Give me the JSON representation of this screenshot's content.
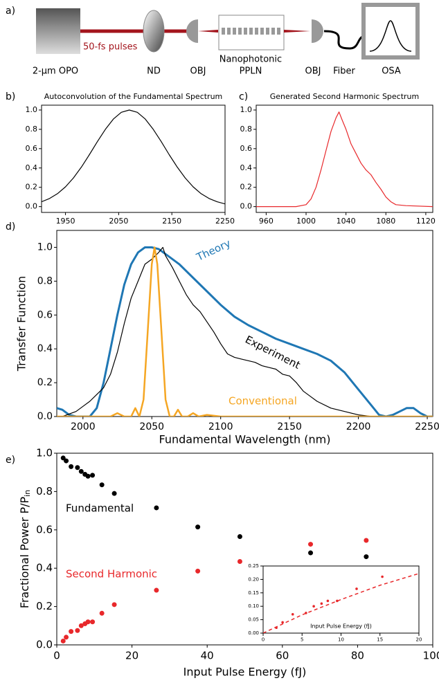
{
  "schematic": {
    "label": "a)",
    "source": "2-µm OPO",
    "pulses": "50-fs pulses",
    "attenuator": "ND",
    "objective_in": "OBJ",
    "chip": [
      "Nanophotonic",
      "PPLN"
    ],
    "objective_out": "OBJ",
    "fiber": "Fiber",
    "analyzer": "OSA"
  },
  "chart_data": [
    {
      "type": "line",
      "label": "b)",
      "title": "Autoconvolution of the Fundamental Spectrum",
      "xlim": [
        1905,
        2250
      ],
      "ylim": [
        -0.06,
        1.05
      ],
      "xticks": [
        1950,
        2050,
        2150,
        2250
      ],
      "yticks": [
        {
          "value": 0,
          "label": "0.0"
        },
        0.2,
        0.4,
        0.6,
        0.8,
        {
          "value": 1,
          "label": "1.0"
        }
      ],
      "series": [
        {
          "color": "#000000",
          "x": [
            1905,
            1920,
            1935,
            1950,
            1965,
            1980,
            1995,
            2010,
            2025,
            2040,
            2055,
            2070,
            2085,
            2100,
            2115,
            2130,
            2145,
            2160,
            2175,
            2190,
            2205,
            2220,
            2235,
            2250
          ],
          "values": [
            0.05,
            0.084,
            0.134,
            0.205,
            0.297,
            0.41,
            0.538,
            0.673,
            0.8,
            0.906,
            0.976,
            1.0,
            0.976,
            0.906,
            0.8,
            0.673,
            0.538,
            0.41,
            0.297,
            0.205,
            0.134,
            0.084,
            0.05,
            0.028
          ]
        }
      ]
    },
    {
      "type": "line",
      "label": "c)",
      "title": "Generated Second Harmonic Spectrum",
      "xlim": [
        950,
        1127
      ],
      "ylim": [
        -0.06,
        1.05
      ],
      "xticks": [
        960,
        1000,
        1040,
        1080,
        1120
      ],
      "yticks": [
        {
          "value": 0,
          "label": "0.0"
        },
        0.2,
        0.4,
        0.6,
        0.8,
        {
          "value": 1,
          "label": "1.0"
        }
      ],
      "series": [
        {
          "color": "#e8282b",
          "x": [
            950,
            990,
            1000,
            1005,
            1010,
            1015,
            1020,
            1025,
            1030,
            1033,
            1036,
            1040,
            1045,
            1050,
            1055,
            1060,
            1065,
            1070,
            1075,
            1080,
            1085,
            1090,
            1100,
            1127
          ],
          "values": [
            0,
            0,
            0.02,
            0.08,
            0.2,
            0.38,
            0.58,
            0.78,
            0.92,
            0.98,
            0.9,
            0.8,
            0.65,
            0.55,
            0.45,
            0.38,
            0.33,
            0.25,
            0.18,
            0.1,
            0.05,
            0.02,
            0.01,
            0
          ]
        }
      ]
    },
    {
      "type": "line",
      "label": "d)",
      "xlabel": "Fundamental Wavelength (nm)",
      "ylabel": "Transfer Function",
      "xlim": [
        1981,
        2254
      ],
      "ylim": [
        0,
        1.1
      ],
      "xticks": [
        2000,
        2050,
        2100,
        2150,
        2200,
        2250
      ],
      "yticks": [
        {
          "value": 0,
          "label": "0.0"
        },
        0.2,
        0.4,
        0.6,
        0.8,
        {
          "value": 1,
          "label": "1.0"
        }
      ],
      "series": [
        {
          "name": "Theory",
          "color": "#1f77b4",
          "x": [
            1981,
            1985,
            1990,
            1995,
            2000,
            2005,
            2010,
            2015,
            2020,
            2025,
            2030,
            2035,
            2040,
            2045,
            2050,
            2055,
            2060,
            2070,
            2080,
            2090,
            2100,
            2110,
            2120,
            2130,
            2140,
            2150,
            2160,
            2170,
            2180,
            2190,
            2200,
            2210,
            2215,
            2220,
            2225,
            2230,
            2235,
            2240,
            2245,
            2250,
            2254
          ],
          "values": [
            0.05,
            0.04,
            0.01,
            0,
            0,
            0,
            0.05,
            0.2,
            0.4,
            0.6,
            0.78,
            0.9,
            0.97,
            1.0,
            1.0,
            0.99,
            0.96,
            0.9,
            0.82,
            0.74,
            0.66,
            0.59,
            0.54,
            0.5,
            0.46,
            0.43,
            0.4,
            0.37,
            0.33,
            0.26,
            0.16,
            0.06,
            0.01,
            0,
            0.01,
            0.03,
            0.05,
            0.05,
            0.02,
            0,
            0
          ]
        },
        {
          "name": "Experiment",
          "color": "#000000",
          "x": [
            1985,
            1995,
            2000,
            2005,
            2010,
            2015,
            2020,
            2025,
            2030,
            2035,
            2040,
            2045,
            2050,
            2055,
            2058,
            2060,
            2065,
            2070,
            2075,
            2080,
            2085,
            2090,
            2095,
            2100,
            2105,
            2110,
            2115,
            2120,
            2125,
            2130,
            2135,
            2140,
            2145,
            2150,
            2155,
            2160,
            2165,
            2170,
            2180,
            2190,
            2200,
            2210
          ],
          "values": [
            0,
            0.03,
            0.06,
            0.09,
            0.13,
            0.17,
            0.25,
            0.38,
            0.55,
            0.7,
            0.8,
            0.9,
            0.93,
            0.97,
            1.0,
            0.95,
            0.88,
            0.8,
            0.72,
            0.66,
            0.62,
            0.56,
            0.5,
            0.43,
            0.37,
            0.35,
            0.34,
            0.33,
            0.32,
            0.3,
            0.29,
            0.28,
            0.25,
            0.24,
            0.2,
            0.15,
            0.12,
            0.09,
            0.05,
            0.03,
            0.01,
            0
          ]
        },
        {
          "name": "Conventional",
          "color": "#f5a623",
          "x": [
            1981,
            2020,
            2025,
            2030,
            2035,
            2038,
            2041,
            2044,
            2047,
            2050,
            2052,
            2054,
            2057,
            2060,
            2063,
            2066,
            2069,
            2072,
            2076,
            2080,
            2084,
            2090,
            2100,
            2254
          ],
          "values": [
            0,
            0,
            0.02,
            0,
            0,
            0.05,
            0,
            0.1,
            0.5,
            0.9,
            1.0,
            0.9,
            0.5,
            0.1,
            0,
            0,
            0.04,
            0,
            0,
            0.02,
            0,
            0.01,
            0,
            0
          ]
        }
      ]
    },
    {
      "type": "scatter",
      "label": "e)",
      "xlabel": "Input Pulse Energy (fJ)",
      "ylabel": [
        "Fractional Power P/P",
        "in"
      ],
      "xlim": [
        0,
        100
      ],
      "ylim": [
        0,
        1
      ],
      "xticks": [
        0,
        20,
        40,
        60,
        80,
        100
      ],
      "yticks": [
        {
          "value": 0,
          "label": "0.0"
        },
        0.2,
        0.4,
        0.6,
        0.8,
        {
          "value": 1,
          "label": "1.0"
        }
      ],
      "series": [
        {
          "name": "Fundamental",
          "color": "#000000",
          "x": [
            1.7,
            2.5,
            3.8,
            5.5,
            6.5,
            7.5,
            8.3,
            9.5,
            12,
            15.3,
            26.5,
            37.5,
            48.7,
            67.5,
            82.3
          ],
          "values": [
            0.975,
            0.96,
            0.93,
            0.925,
            0.905,
            0.89,
            0.88,
            0.885,
            0.835,
            0.79,
            0.715,
            0.615,
            0.565,
            0.48,
            0.46
          ]
        },
        {
          "name": "Second Harmonic",
          "color": "#e8282b",
          "x": [
            1.7,
            2.5,
            3.8,
            5.5,
            6.5,
            7.5,
            8.3,
            9.5,
            12,
            15.3,
            26.5,
            37.5,
            48.7,
            67.5,
            82.3
          ],
          "values": [
            0.02,
            0.04,
            0.07,
            0.075,
            0.1,
            0.11,
            0.12,
            0.12,
            0.165,
            0.21,
            0.285,
            0.385,
            0.435,
            0.525,
            0.545
          ]
        }
      ]
    },
    {
      "type": "scatter",
      "xlabel": "Input Pulse Energy (fJ)",
      "xlim": [
        0,
        20
      ],
      "ylim": [
        0,
        0.25
      ],
      "xticks": [
        0,
        5,
        10,
        15,
        20
      ],
      "yticks": [
        {
          "value": 0,
          "label": "0.00"
        },
        {
          "value": 0.05,
          "label": "0.05"
        },
        {
          "value": 0.1,
          "label": "0.10"
        },
        {
          "value": 0.15,
          "label": "0.15"
        },
        {
          "value": 0.2,
          "label": "0.20"
        },
        {
          "value": 0.25,
          "label": "0.25"
        }
      ],
      "series": [
        {
          "color": "#e8282b",
          "x": [
            1.7,
            2.5,
            3.8,
            5.5,
            6.5,
            7.5,
            8.3,
            9.5,
            12,
            15.3
          ],
          "values": [
            0.02,
            0.04,
            0.07,
            0.075,
            0.1,
            0.11,
            0.12,
            0.12,
            0.165,
            0.21
          ]
        },
        {
          "color": "#e8282b",
          "style": "dashed",
          "x": [
            0,
            5,
            10,
            15,
            20
          ],
          "values": [
            0,
            0.068,
            0.125,
            0.178,
            0.222
          ]
        }
      ]
    }
  ]
}
